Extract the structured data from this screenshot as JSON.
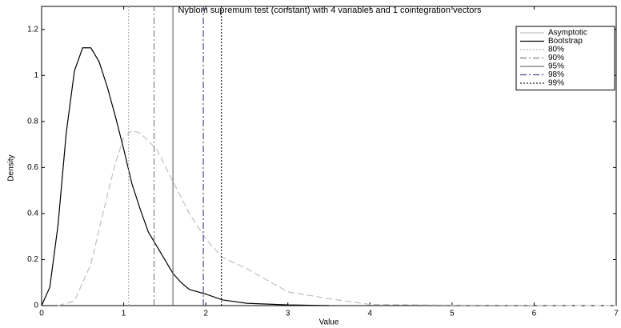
{
  "chart_data": {
    "type": "line",
    "title": "Nyblom supremum test (constant) with 4 variables and 1 cointegration vectors",
    "x_label": "Value",
    "y_label": "Density",
    "xlim": [
      0,
      7
    ],
    "ylim": [
      0,
      1.3
    ],
    "xticks": [
      0,
      1,
      2,
      3,
      4,
      5,
      6,
      7
    ],
    "yticks": [
      0,
      0.2,
      0.4,
      0.6,
      0.8,
      1,
      1.2
    ],
    "grid": false,
    "legend": "upper-right",
    "series": [
      {
        "name": "Asymptotic",
        "color": "#c0c0c0",
        "style": "dashed",
        "x": [
          0.2,
          0.4,
          0.6,
          0.8,
          0.9,
          1.0,
          1.1,
          1.2,
          1.4,
          1.6,
          1.8,
          2.0,
          2.2,
          2.5,
          2.8,
          3.0,
          3.5,
          4.0,
          5.0,
          7.0
        ],
        "values": [
          0,
          0.02,
          0.18,
          0.48,
          0.62,
          0.73,
          0.76,
          0.75,
          0.68,
          0.54,
          0.4,
          0.29,
          0.21,
          0.16,
          0.1,
          0.06,
          0.03,
          0.005,
          0.002,
          0
        ]
      },
      {
        "name": "Bootstrap",
        "color": "#000000",
        "style": "solid",
        "x": [
          0,
          0.1,
          0.2,
          0.3,
          0.4,
          0.5,
          0.6,
          0.7,
          0.8,
          0.9,
          1.0,
          1.1,
          1.2,
          1.3,
          1.4,
          1.5,
          1.6,
          1.7,
          1.8,
          2.0,
          2.2,
          2.5,
          3.0,
          3.5
        ],
        "values": [
          0,
          0.08,
          0.35,
          0.75,
          1.02,
          1.12,
          1.12,
          1.06,
          0.95,
          0.82,
          0.68,
          0.53,
          0.42,
          0.32,
          0.26,
          0.2,
          0.14,
          0.1,
          0.07,
          0.05,
          0.025,
          0.01,
          0.003,
          0
        ]
      }
    ],
    "critical_values": [
      {
        "name": "80%",
        "value": 1.06,
        "color": "#b0b0b0",
        "style": "dotted"
      },
      {
        "name": "90%",
        "value": 1.37,
        "color": "#808080",
        "style": "dashdot"
      },
      {
        "name": "95%",
        "value": 1.6,
        "color": "#707070",
        "style": "solid"
      },
      {
        "name": "98%",
        "value": 1.97,
        "color": "#4a4a8a",
        "style": "dashdot"
      },
      {
        "name": "99%",
        "value": 2.19,
        "color": "#202020",
        "style": "dotted"
      }
    ]
  }
}
